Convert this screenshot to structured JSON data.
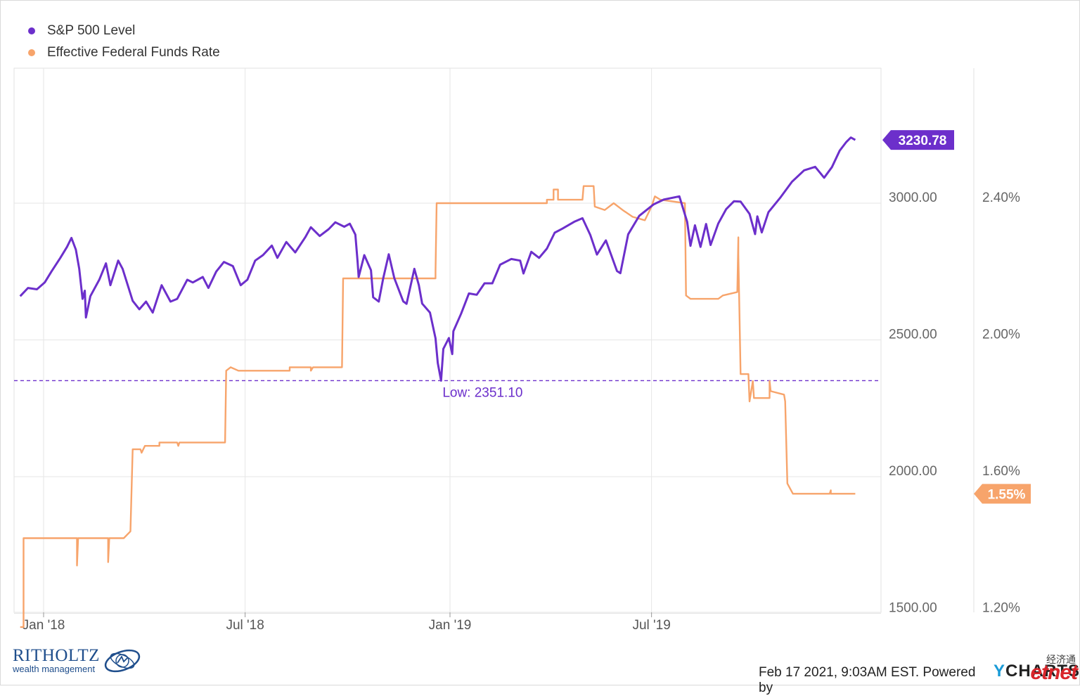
{
  "legend": {
    "items": [
      {
        "label": "S&P 500 Level",
        "color": "#6c2fcb"
      },
      {
        "label": "Effective Federal Funds Rate",
        "color": "#f7a46b"
      }
    ]
  },
  "chart_data": {
    "type": "line",
    "x_ticks": [
      "Jan '18",
      "Jul '18",
      "Jan '19",
      "Jul '19"
    ],
    "x_range": [
      "2017-12-11",
      "2019-12-31"
    ],
    "left_axis": {
      "ticks": [
        "3000.00",
        "2500.00",
        "2000.00",
        "1500.00"
      ],
      "ylim": [
        1500,
        3500
      ]
    },
    "right_axis": {
      "ticks": [
        "2.40%",
        "2.00%",
        "1.60%",
        "1.20%"
      ],
      "ylim": [
        1.2,
        3.2
      ]
    },
    "grid": true,
    "series": [
      {
        "name": "S&P 500 Level",
        "axis": "left",
        "color": "#6c2fcb",
        "last_value_label": "3230.78",
        "points": [
          [
            "2017-12-11",
            2660
          ],
          [
            "2017-12-18",
            2690
          ],
          [
            "2017-12-26",
            2685
          ],
          [
            "2018-01-02",
            2710
          ],
          [
            "2018-01-08",
            2750
          ],
          [
            "2018-01-16",
            2800
          ],
          [
            "2018-01-22",
            2840
          ],
          [
            "2018-01-26",
            2873
          ],
          [
            "2018-01-30",
            2830
          ],
          [
            "2018-02-02",
            2760
          ],
          [
            "2018-02-05",
            2650
          ],
          [
            "2018-02-07",
            2680
          ],
          [
            "2018-02-08",
            2582
          ],
          [
            "2018-02-12",
            2660
          ],
          [
            "2018-02-20",
            2720
          ],
          [
            "2018-02-26",
            2780
          ],
          [
            "2018-03-02",
            2700
          ],
          [
            "2018-03-09",
            2790
          ],
          [
            "2018-03-13",
            2760
          ],
          [
            "2018-03-22",
            2643
          ],
          [
            "2018-03-28",
            2612
          ],
          [
            "2018-04-03",
            2640
          ],
          [
            "2018-04-09",
            2600
          ],
          [
            "2018-04-17",
            2700
          ],
          [
            "2018-04-25",
            2640
          ],
          [
            "2018-05-01",
            2650
          ],
          [
            "2018-05-10",
            2720
          ],
          [
            "2018-05-15",
            2710
          ],
          [
            "2018-05-24",
            2730
          ],
          [
            "2018-05-29",
            2690
          ],
          [
            "2018-06-05",
            2750
          ],
          [
            "2018-06-12",
            2785
          ],
          [
            "2018-06-20",
            2770
          ],
          [
            "2018-06-27",
            2700
          ],
          [
            "2018-07-03",
            2720
          ],
          [
            "2018-07-10",
            2790
          ],
          [
            "2018-07-17",
            2810
          ],
          [
            "2018-07-25",
            2845
          ],
          [
            "2018-07-30",
            2800
          ],
          [
            "2018-08-07",
            2858
          ],
          [
            "2018-08-15",
            2820
          ],
          [
            "2018-08-24",
            2875
          ],
          [
            "2018-08-29",
            2912
          ],
          [
            "2018-09-06",
            2880
          ],
          [
            "2018-09-14",
            2905
          ],
          [
            "2018-09-20",
            2930
          ],
          [
            "2018-09-28",
            2914
          ],
          [
            "2018-10-03",
            2925
          ],
          [
            "2018-10-08",
            2885
          ],
          [
            "2018-10-10",
            2785
          ],
          [
            "2018-10-11",
            2730
          ],
          [
            "2018-10-16",
            2810
          ],
          [
            "2018-10-22",
            2755
          ],
          [
            "2018-10-24",
            2656
          ],
          [
            "2018-10-29",
            2640
          ],
          [
            "2018-11-02",
            2725
          ],
          [
            "2018-11-07",
            2813
          ],
          [
            "2018-11-12",
            2726
          ],
          [
            "2018-11-20",
            2641
          ],
          [
            "2018-11-23",
            2632
          ],
          [
            "2018-11-30",
            2760
          ],
          [
            "2018-12-04",
            2700
          ],
          [
            "2018-12-07",
            2633
          ],
          [
            "2018-12-14",
            2600
          ],
          [
            "2018-12-19",
            2506
          ],
          [
            "2018-12-21",
            2416
          ],
          [
            "2018-12-24",
            2351
          ],
          [
            "2018-12-26",
            2467
          ],
          [
            "2018-12-31",
            2507
          ],
          [
            "2019-01-03",
            2448
          ],
          [
            "2019-01-04",
            2532
          ],
          [
            "2019-01-11",
            2596
          ],
          [
            "2019-01-18",
            2670
          ],
          [
            "2019-01-25",
            2665
          ],
          [
            "2019-02-01",
            2707
          ],
          [
            "2019-02-08",
            2707
          ],
          [
            "2019-02-15",
            2775
          ],
          [
            "2019-02-25",
            2796
          ],
          [
            "2019-03-05",
            2790
          ],
          [
            "2019-03-08",
            2743
          ],
          [
            "2019-03-15",
            2822
          ],
          [
            "2019-03-22",
            2800
          ],
          [
            "2019-03-29",
            2834
          ],
          [
            "2019-04-05",
            2892
          ],
          [
            "2019-04-12",
            2907
          ],
          [
            "2019-04-23",
            2933
          ],
          [
            "2019-04-30",
            2945
          ],
          [
            "2019-05-07",
            2884
          ],
          [
            "2019-05-13",
            2812
          ],
          [
            "2019-05-21",
            2864
          ],
          [
            "2019-05-31",
            2752
          ],
          [
            "2019-06-03",
            2744
          ],
          [
            "2019-06-10",
            2886
          ],
          [
            "2019-06-20",
            2954
          ],
          [
            "2019-07-03",
            2996
          ],
          [
            "2019-07-12",
            3013
          ],
          [
            "2019-07-26",
            3025
          ],
          [
            "2019-08-02",
            2932
          ],
          [
            "2019-08-05",
            2844
          ],
          [
            "2019-08-09",
            2919
          ],
          [
            "2019-08-14",
            2840
          ],
          [
            "2019-08-19",
            2924
          ],
          [
            "2019-08-23",
            2847
          ],
          [
            "2019-08-30",
            2926
          ],
          [
            "2019-09-06",
            2978
          ],
          [
            "2019-09-13",
            3007
          ],
          [
            "2019-09-19",
            3006
          ],
          [
            "2019-09-27",
            2961
          ],
          [
            "2019-10-02",
            2887
          ],
          [
            "2019-10-04",
            2952
          ],
          [
            "2019-10-08",
            2893
          ],
          [
            "2019-10-14",
            2967
          ],
          [
            "2019-10-25",
            3022
          ],
          [
            "2019-11-04",
            3078
          ],
          [
            "2019-11-15",
            3120
          ],
          [
            "2019-11-25",
            3133
          ],
          [
            "2019-12-03",
            3093
          ],
          [
            "2019-12-10",
            3132
          ],
          [
            "2019-12-17",
            3192
          ],
          [
            "2019-12-23",
            3224
          ],
          [
            "2019-12-27",
            3240
          ],
          [
            "2019-12-31",
            3231
          ]
        ],
        "annotation": {
          "label": "Low: 2351.10",
          "value": 2351.1,
          "date": "2018-12-24"
        }
      },
      {
        "name": "Effective Federal Funds Rate",
        "axis": "right",
        "color": "#f7a46b",
        "last_value_label": "1.55%",
        "points": [
          [
            "2017-12-11",
            1.16
          ],
          [
            "2017-12-14",
            1.16
          ],
          [
            "2017-12-14",
            1.42
          ],
          [
            "2018-01-31",
            1.42
          ],
          [
            "2018-01-31",
            1.34
          ],
          [
            "2018-02-01",
            1.42
          ],
          [
            "2018-02-28",
            1.42
          ],
          [
            "2018-02-28",
            1.35
          ],
          [
            "2018-03-01",
            1.42
          ],
          [
            "2018-03-14",
            1.42
          ],
          [
            "2018-03-20",
            1.44
          ],
          [
            "2018-03-22",
            1.68
          ],
          [
            "2018-03-29",
            1.68
          ],
          [
            "2018-03-30",
            1.67
          ],
          [
            "2018-04-02",
            1.69
          ],
          [
            "2018-04-15",
            1.69
          ],
          [
            "2018-04-15",
            1.7
          ],
          [
            "2018-05-01",
            1.7
          ],
          [
            "2018-05-02",
            1.69
          ],
          [
            "2018-05-03",
            1.7
          ],
          [
            "2018-06-13",
            1.7
          ],
          [
            "2018-06-14",
            1.91
          ],
          [
            "2018-06-18",
            1.92
          ],
          [
            "2018-06-25",
            1.91
          ],
          [
            "2018-08-10",
            1.91
          ],
          [
            "2018-08-10",
            1.92
          ],
          [
            "2018-08-29",
            1.92
          ],
          [
            "2018-08-29",
            1.91
          ],
          [
            "2018-08-31",
            1.92
          ],
          [
            "2018-09-26",
            1.92
          ],
          [
            "2018-09-27",
            2.18
          ],
          [
            "2018-12-19",
            2.18
          ],
          [
            "2018-12-19",
            2.2
          ],
          [
            "2018-12-20",
            2.4
          ],
          [
            "2019-03-29",
            2.4
          ],
          [
            "2019-03-29",
            2.41
          ],
          [
            "2019-04-04",
            2.41
          ],
          [
            "2019-04-04",
            2.44
          ],
          [
            "2019-04-08",
            2.44
          ],
          [
            "2019-04-08",
            2.41
          ],
          [
            "2019-04-30",
            2.41
          ],
          [
            "2019-05-01",
            2.45
          ],
          [
            "2019-05-10",
            2.45
          ],
          [
            "2019-05-11",
            2.39
          ],
          [
            "2019-05-20",
            2.38
          ],
          [
            "2019-05-28",
            2.4
          ],
          [
            "2019-06-05",
            2.38
          ],
          [
            "2019-06-14",
            2.36
          ],
          [
            "2019-06-25",
            2.35
          ],
          [
            "2019-07-01",
            2.39
          ],
          [
            "2019-07-04",
            2.42
          ],
          [
            "2019-07-09",
            2.41
          ],
          [
            "2019-07-31",
            2.4
          ],
          [
            "2019-08-01",
            2.13
          ],
          [
            "2019-08-05",
            2.12
          ],
          [
            "2019-08-30",
            2.12
          ],
          [
            "2019-09-03",
            2.13
          ],
          [
            "2019-09-16",
            2.14
          ],
          [
            "2019-09-17",
            2.3
          ],
          [
            "2019-09-17",
            2.25
          ],
          [
            "2019-09-19",
            1.9
          ],
          [
            "2019-09-26",
            1.9
          ],
          [
            "2019-09-27",
            1.82
          ],
          [
            "2019-09-30",
            1.88
          ],
          [
            "2019-10-01",
            1.83
          ],
          [
            "2019-10-15",
            1.83
          ],
          [
            "2019-10-15",
            1.88
          ],
          [
            "2019-10-16",
            1.85
          ],
          [
            "2019-10-28",
            1.84
          ],
          [
            "2019-10-29",
            1.82
          ],
          [
            "2019-10-31",
            1.58
          ],
          [
            "2019-11-05",
            1.55
          ],
          [
            "2019-12-08",
            1.55
          ],
          [
            "2019-12-09",
            1.56
          ],
          [
            "2019-12-09",
            1.55
          ],
          [
            "2019-12-31",
            1.55
          ]
        ]
      }
    ]
  },
  "branding": {
    "name": "RITHOLTZ",
    "subtitle": "wealth management"
  },
  "footer": {
    "text": "Feb 17 2021, 9:03AM EST. Powered by",
    "brand_y": "Y",
    "brand_rest": "CHARTS"
  },
  "watermark": {
    "chinese": "经济通",
    "logo": "etnet"
  }
}
